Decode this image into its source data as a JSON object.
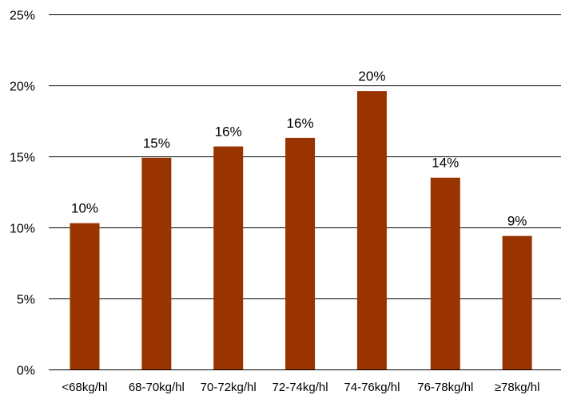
{
  "chart_data": {
    "type": "bar",
    "title": "",
    "xlabel": "",
    "ylabel": "",
    "categories": [
      "<68kg/hl",
      "68-70kg/hl",
      "70-72kg/hl",
      "72-74kg/hl",
      "74-76kg/hl",
      "76-78kg/hl",
      "≥78kg/hl"
    ],
    "values": [
      10.3,
      14.9,
      15.7,
      16.3,
      19.6,
      13.5,
      9.4
    ],
    "data_labels": [
      "10%",
      "15%",
      "16%",
      "16%",
      "20%",
      "14%",
      "9%"
    ],
    "ylim": [
      0,
      25
    ],
    "yticks": [
      0,
      5,
      10,
      15,
      20,
      25
    ],
    "ytick_labels": [
      "0%",
      "5%",
      "10%",
      "15%",
      "20%",
      "25%"
    ],
    "grid": true,
    "legend": "none",
    "bar_color": "#993300"
  }
}
